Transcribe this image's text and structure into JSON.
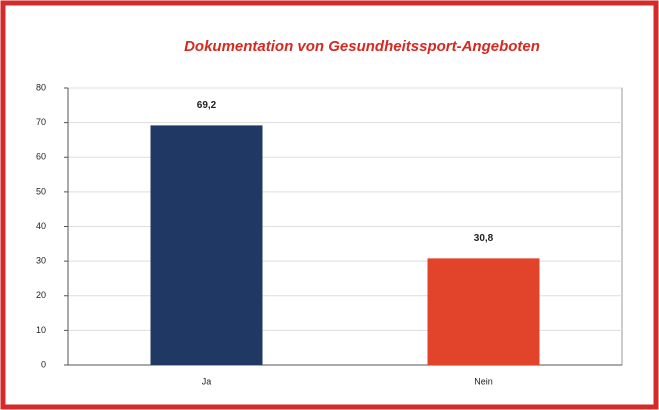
{
  "chart_data": {
    "type": "bar",
    "title": "Dokumentation von Gesundheitssport-Angeboten",
    "categories": [
      "Ja",
      "Nein"
    ],
    "values": [
      69.2,
      30.8
    ],
    "value_labels": [
      "69,2",
      "30,8"
    ],
    "colors": [
      "#1f3864",
      "#e2432b"
    ],
    "ylim": [
      0,
      80
    ],
    "yticks": [
      0,
      10,
      20,
      30,
      40,
      50,
      60,
      70,
      80
    ],
    "grid": true
  }
}
